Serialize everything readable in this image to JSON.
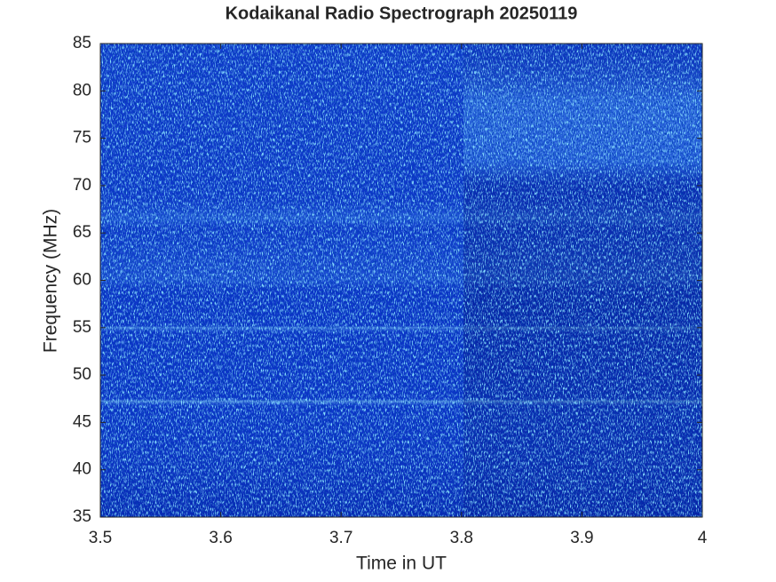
{
  "chart_data": {
    "type": "spectrogram",
    "title": "Kodaikanal Radio Spectrograph  20250119",
    "xlabel": "Time in UT",
    "ylabel": "Frequency (MHz)",
    "xlim": [
      3.5,
      4
    ],
    "xticks": [
      3.5,
      3.6,
      3.7,
      3.8,
      3.9,
      4
    ],
    "ylim": [
      35,
      85
    ],
    "yticks": [
      35,
      40,
      45,
      50,
      55,
      60,
      65,
      70,
      75,
      80,
      85
    ]
  }
}
